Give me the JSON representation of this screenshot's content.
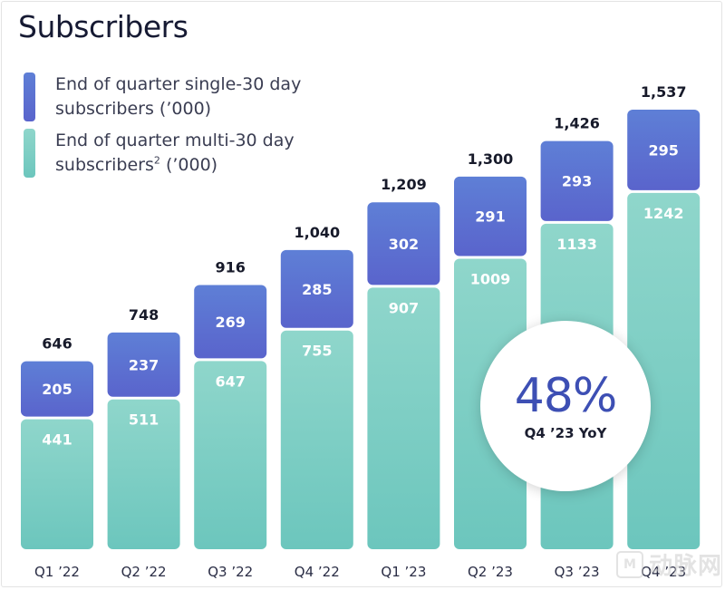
{
  "title": "Subscribers",
  "legend": {
    "single": {
      "line1": "End of quarter single-30 day",
      "line2": "subscribers (’000)"
    },
    "multi": {
      "line1": "End of quarter multi-30 day",
      "line2a": "subscribers",
      "sup": "2",
      "line2b": " (’000)"
    }
  },
  "colors": {
    "single_top": "#5e7fd6",
    "single_bottom": "#5a64cc",
    "multi_top": "#8fd6cb",
    "multi_bottom": "#6cc6bd",
    "accent": "#3d4fb4"
  },
  "callout": {
    "value": "48%",
    "label": "Q4 ’23 YoY"
  },
  "watermark": {
    "logo": "M",
    "text": "动脉网"
  },
  "chart_data": {
    "type": "bar",
    "stacked": true,
    "categories": [
      "Q1 ’22",
      "Q2 ’22",
      "Q3 ’22",
      "Q4 ’22",
      "Q1 ’23",
      "Q2 ’23",
      "Q3 ’23",
      "Q4 ’23"
    ],
    "series": [
      {
        "name": "End of quarter multi-30 day subscribers (’000)",
        "values": [
          441,
          511,
          647,
          755,
          907,
          1009,
          1133,
          1242
        ]
      },
      {
        "name": "End of quarter single-30 day subscribers (’000)",
        "values": [
          205,
          237,
          269,
          285,
          302,
          291,
          293,
          295
        ]
      }
    ],
    "totals": [
      "646",
      "748",
      "916",
      "1,040",
      "1,209",
      "1,300",
      "1,426",
      "1,537"
    ],
    "ylim": [
      0,
      1537
    ]
  }
}
